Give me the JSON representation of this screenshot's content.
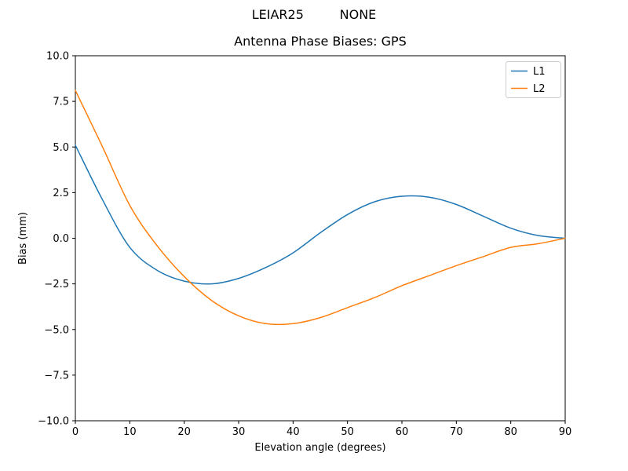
{
  "chart_data": {
    "type": "line",
    "suptitle": "LEIAR25         NONE",
    "title": "Antenna Phase Biases: GPS",
    "xlabel": "Elevation angle (degrees)",
    "ylabel": "Bias (mm)",
    "xlim": [
      0,
      90
    ],
    "ylim": [
      -10,
      10
    ],
    "xticks": [
      0,
      10,
      20,
      30,
      40,
      50,
      60,
      70,
      80,
      90
    ],
    "xtick_labels": [
      "0",
      "10",
      "20",
      "30",
      "40",
      "50",
      "60",
      "70",
      "80",
      "90"
    ],
    "yticks": [
      -10,
      -7.5,
      -5,
      -2.5,
      0,
      2.5,
      5,
      7.5,
      10
    ],
    "ytick_labels": [
      "−10.0",
      "−7.5",
      "−5.0",
      "−2.5",
      "0.0",
      "2.5",
      "5.0",
      "7.5",
      "10.0"
    ],
    "grid": false,
    "legend_position": "upper right",
    "x": [
      0,
      5,
      10,
      15,
      20,
      25,
      30,
      35,
      40,
      45,
      50,
      55,
      60,
      65,
      70,
      75,
      80,
      85,
      90
    ],
    "series": [
      {
        "name": "L1",
        "color": "#1f77b4",
        "values": [
          5.1,
          2.1,
          -0.5,
          -1.75,
          -2.35,
          -2.5,
          -2.2,
          -1.6,
          -0.8,
          0.3,
          1.3,
          2.0,
          2.3,
          2.25,
          1.85,
          1.2,
          0.55,
          0.15,
          0.0
        ]
      },
      {
        "name": "L2",
        "color": "#ff7f0e",
        "values": [
          8.1,
          5.0,
          1.8,
          -0.4,
          -2.1,
          -3.4,
          -4.25,
          -4.68,
          -4.68,
          -4.35,
          -3.8,
          -3.25,
          -2.6,
          -2.05,
          -1.5,
          -1.0,
          -0.5,
          -0.3,
          0.0
        ]
      }
    ],
    "frame_color": "#000000",
    "background_color": "#ffffff",
    "legend_border_color": "#cccccc"
  }
}
